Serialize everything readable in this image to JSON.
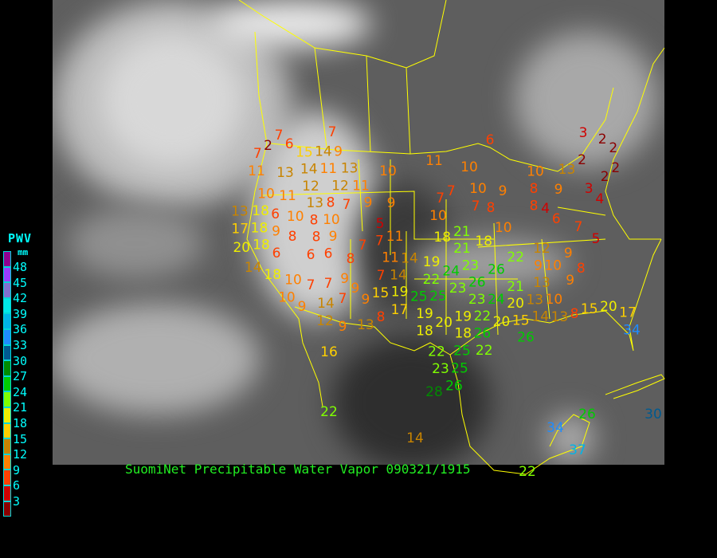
{
  "caption": "SuomiNet Precipitable Water Vapor 090321/1915",
  "legend": {
    "title": "PWV",
    "unit": "mm",
    "ticks": [
      "48",
      "45",
      "42",
      "39",
      "36",
      "33",
      "30",
      "27",
      "24",
      "21",
      "18",
      "15",
      "12",
      "9",
      "6",
      "3"
    ],
    "colors_top_to_bottom": [
      "#900090",
      "#9a3cff",
      "#8070d0",
      "#00e8e8",
      "#00b4e6",
      "#1e8cff",
      "#005a90",
      "#008c00",
      "#00cc00",
      "#80ff00",
      "#eeee00",
      "#ffd000",
      "#c88400",
      "#ff8000",
      "#ff4000",
      "#d00000",
      "#8b0000"
    ]
  },
  "map": {
    "background": "GOES infrared satellite image with state/country boundaries",
    "boundary_color": "#ffff00",
    "station_values": [
      7,
      7,
      2,
      7,
      6,
      14,
      9,
      15,
      14,
      11,
      13,
      11,
      13,
      10,
      12,
      12,
      11,
      10,
      11,
      13,
      8,
      7,
      9,
      9,
      13,
      18,
      6,
      10,
      8,
      10,
      17,
      18,
      9,
      8,
      8,
      9,
      18,
      20,
      6,
      6,
      6,
      8,
      7,
      7,
      5,
      11,
      11,
      14,
      14,
      18,
      10,
      7,
      7,
      9,
      7,
      9,
      9,
      7,
      14,
      10,
      9,
      14,
      12,
      9,
      13,
      8,
      15,
      6,
      3,
      2,
      2,
      2,
      2,
      2,
      11,
      10,
      10,
      13,
      7,
      7,
      10,
      9,
      8,
      9,
      3,
      4,
      7,
      8,
      8,
      4,
      6,
      10,
      10,
      7,
      5,
      18,
      18,
      21,
      21,
      22,
      12,
      10,
      9,
      8,
      9,
      19,
      23,
      24,
      22,
      23,
      26,
      26,
      9,
      19,
      25,
      25,
      23,
      24,
      21,
      13,
      13,
      10,
      17,
      20,
      22,
      14,
      13,
      8,
      15,
      20,
      17,
      34,
      19,
      19,
      20,
      20,
      15,
      18,
      18,
      26,
      26,
      22,
      16,
      22,
      25,
      23,
      25,
      26,
      28,
      22,
      14,
      34,
      26,
      30,
      37,
      22
    ]
  }
}
